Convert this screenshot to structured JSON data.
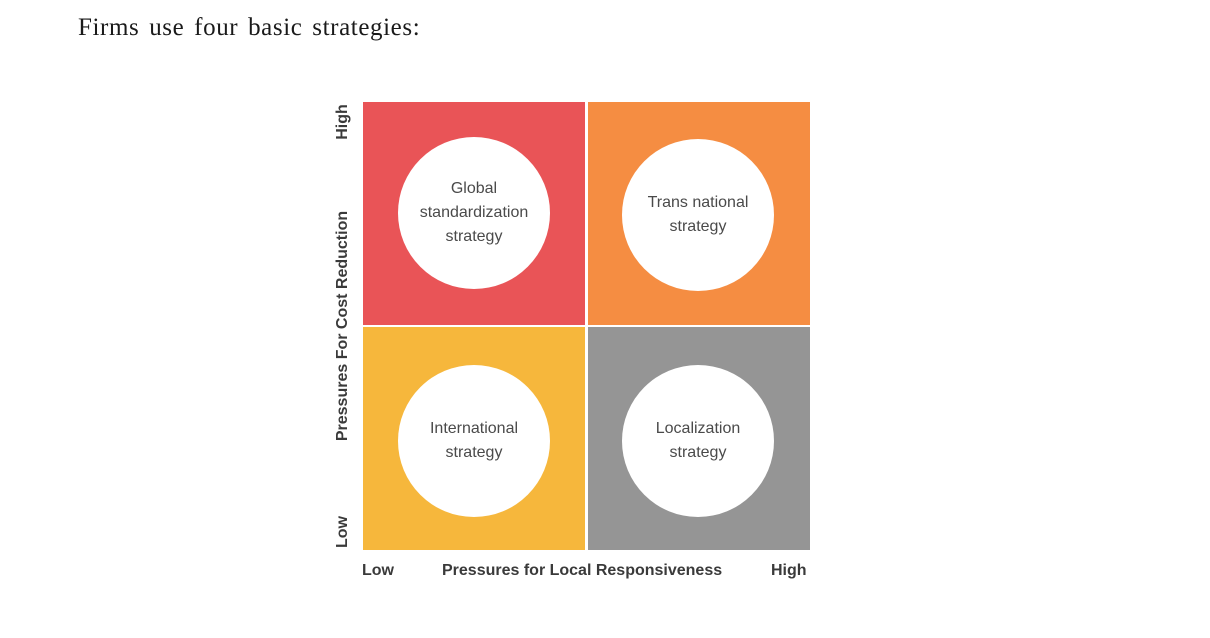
{
  "heading": "Firms use four basic strategies:",
  "matrix": {
    "quadrants": [
      {
        "id": "top-left",
        "label": "Global\nstandardization\nstrategy",
        "color": "#E95457"
      },
      {
        "id": "top-right",
        "label": "Trans national\nstrategy",
        "color": "#F58D42"
      },
      {
        "id": "bottom-left",
        "label": "International\nstrategy",
        "color": "#F6B73C"
      },
      {
        "id": "bottom-right",
        "label": "Localization\nstrategy",
        "color": "#959595"
      }
    ]
  },
  "x_axis": {
    "low": "Low",
    "title": "Pressures for Local Responsiveness",
    "high": "High"
  },
  "y_axis": {
    "low": "Low",
    "title": "Pressures For Cost Reduction",
    "high": "High"
  }
}
